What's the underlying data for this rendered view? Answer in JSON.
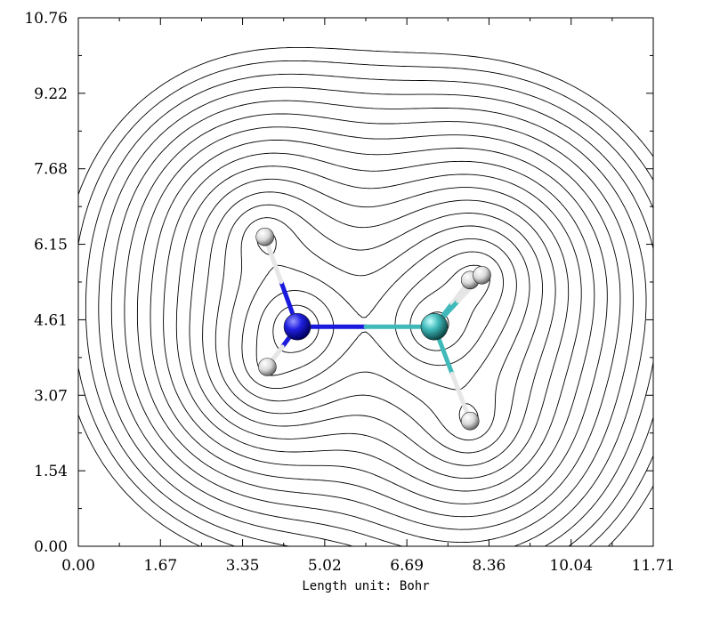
{
  "chart_data": {
    "type": "contour",
    "xlabel": "Length unit: Bohr",
    "ylabel": "",
    "xlim": [
      0.0,
      11.71
    ],
    "ylim": [
      0.0,
      10.76
    ],
    "x_ticks": [
      "0.00",
      "1.67",
      "3.35",
      "5.02",
      "6.69",
      "8.36",
      "10.04",
      "11.71"
    ],
    "y_ticks": [
      "0.00",
      "1.54",
      "3.07",
      "4.61",
      "6.15",
      "7.68",
      "9.22",
      "10.76"
    ],
    "grid": false,
    "atoms": [
      {
        "element": "N",
        "color": "#1a1adc",
        "x": 4.46,
        "y": 4.47
      },
      {
        "element": "C",
        "color": "#3fb9b9",
        "x": 7.25,
        "y": 4.47
      },
      {
        "element": "H",
        "color": "#e6e6e6",
        "x": 3.8,
        "y": 6.3
      },
      {
        "element": "H",
        "color": "#e6e6e6",
        "x": 3.85,
        "y": 3.65
      },
      {
        "element": "H",
        "color": "#e6e6e6",
        "x": 7.98,
        "y": 5.42
      },
      {
        "element": "H",
        "color": "#e6e6e6",
        "x": 8.22,
        "y": 5.52
      },
      {
        "element": "H",
        "color": "#e6e6e6",
        "x": 7.98,
        "y": 2.55
      }
    ],
    "bonds": [
      [
        0,
        1
      ],
      [
        0,
        2
      ],
      [
        0,
        3
      ],
      [
        1,
        4
      ],
      [
        1,
        5
      ],
      [
        1,
        6
      ]
    ]
  }
}
